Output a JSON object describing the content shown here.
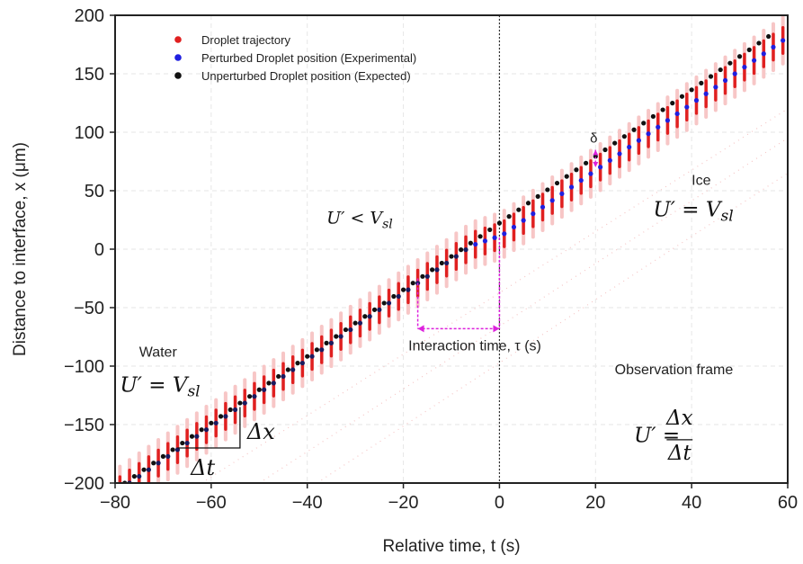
{
  "chart_data": {
    "type": "scatter",
    "xlabel": "Relative time, t (s)",
    "ylabel": "Distance to interface,  x (μm)",
    "xlim": [
      -80,
      60
    ],
    "ylim": [
      -200,
      200
    ],
    "xticks": [
      -80,
      -60,
      -40,
      -20,
      0,
      20,
      40,
      60
    ],
    "yticks": [
      -200,
      -150,
      -100,
      -50,
      0,
      50,
      100,
      150,
      200
    ],
    "x_tick_labels": [
      "−80",
      "−60",
      "−40",
      "−20",
      "0",
      "20",
      "40",
      "60"
    ],
    "y_tick_labels": [
      "−200",
      "−150",
      "−100",
      "−50",
      "0",
      "50",
      "100",
      "150",
      "200"
    ],
    "grid": true,
    "legend_position": "top-left",
    "series": [
      {
        "name": "Droplet trajectory",
        "color": "#e02020",
        "marker": "vertical streaks",
        "x_start": -79,
        "x_end": 59,
        "x_step": 2,
        "streak_length_um": 22
      },
      {
        "name": "Perturbed Droplet position (Experimental)",
        "color": "#1f1fe0",
        "x": [
          -77,
          -75,
          -73,
          -71,
          -69,
          -67,
          -65,
          -63,
          -61,
          -59,
          -57,
          -55,
          -53,
          -51,
          -49,
          -47,
          -45,
          -43,
          -41,
          -39,
          -37,
          -35,
          -33,
          -31,
          -29,
          -27,
          -25,
          -23,
          -21,
          -19,
          -17,
          -15,
          -13,
          -11,
          -9,
          -7,
          -5,
          -3,
          -1,
          1,
          3,
          5,
          7,
          9,
          11,
          13,
          15,
          17,
          19,
          21,
          23,
          25,
          27,
          29,
          31,
          33,
          35,
          37,
          39,
          41,
          43,
          45,
          47,
          49,
          51,
          53,
          55,
          57,
          59
        ],
        "y": [
          -200,
          -194.3,
          -188.6,
          -182.9,
          -177.2,
          -171.5,
          -165.8,
          -160.1,
          -154.4,
          -148.7,
          -143,
          -137.3,
          -131.6,
          -125.9,
          -120.2,
          -114.5,
          -108.8,
          -103.1,
          -97.4,
          -91.7,
          -86,
          -80.3,
          -74.6,
          -68.9,
          -63.2,
          -57.5,
          -51.8,
          -46.1,
          -40.4,
          -34.7,
          -29,
          -23.3,
          -17.6,
          -11.9,
          -6.2,
          -0.5,
          4.2,
          7,
          9.8,
          13.2,
          18.9,
          24.6,
          30.3,
          36,
          41.7,
          47.4,
          53.1,
          58.8,
          64.5,
          70.2,
          75.9,
          81.6,
          87.3,
          93,
          98.7,
          104.4,
          110.1,
          115.8,
          121.5,
          127.2,
          132.9,
          138.6,
          144.3,
          150,
          155.7,
          161.4,
          167.1,
          172.8,
          178.5
        ]
      },
      {
        "name": "Unperturbed Droplet position (Expected)",
        "color": "#111111",
        "x": [
          -78,
          -76,
          -74,
          -72,
          -70,
          -68,
          -66,
          -64,
          -62,
          -60,
          -58,
          -56,
          -54,
          -52,
          -50,
          -48,
          -46,
          -44,
          -42,
          -40,
          -38,
          -36,
          -34,
          -32,
          -30,
          -28,
          -26,
          -24,
          -22,
          -20,
          -18,
          -16,
          -14,
          -12,
          -10,
          -8,
          -6,
          -4,
          -2,
          0,
          2,
          4,
          6,
          8,
          10,
          12,
          14,
          16,
          18,
          20,
          22,
          24,
          26,
          28,
          30,
          32,
          34,
          36,
          38,
          40,
          42,
          44,
          46,
          48,
          50,
          52,
          54,
          56
        ],
        "y": [
          -200,
          -194.3,
          -188.6,
          -182.9,
          -177.2,
          -171.5,
          -165.8,
          -160.1,
          -154.4,
          -148.7,
          -143,
          -137.3,
          -131.6,
          -125.9,
          -120.2,
          -114.5,
          -108.8,
          -103.1,
          -97.4,
          -91.7,
          -86,
          -80.3,
          -74.6,
          -68.9,
          -63.2,
          -57.5,
          -51.8,
          -46.1,
          -40.4,
          -34.7,
          -29,
          -23.3,
          -17.6,
          -11.9,
          -6.2,
          -0.5,
          5.2,
          10.9,
          16.6,
          22.3,
          28,
          33.7,
          39.4,
          45.1,
          50.8,
          56.5,
          62.2,
          67.9,
          73.6,
          79.3,
          85,
          90.7,
          96.4,
          102.1,
          107.8,
          113.5,
          119.2,
          124.9,
          130.6,
          136.3,
          142,
          147.7,
          153.4,
          159.1,
          164.8,
          170.5,
          176.2,
          181.9
        ]
      }
    ],
    "reference_line": {
      "x": 0,
      "style": "dotted",
      "color": "#333333"
    },
    "interaction_bracket": {
      "x_from": -17,
      "x_to": 0,
      "y": -68,
      "label": "Interaction time, τ (s)",
      "color": "#dd22dd"
    },
    "delta_marker": {
      "x": 20,
      "y_from": 70,
      "y_to": 85,
      "label": "δ"
    },
    "slope_triangle": {
      "x_from": -67,
      "x_to": -54,
      "y_from": -170,
      "y_to": -135,
      "dx_label": "Δx",
      "dt_label": "Δt"
    },
    "annotations": [
      {
        "id": "water",
        "text": "Water",
        "x": -75,
        "y": -92
      },
      {
        "id": "water-eq",
        "text": "U′ = V",
        "sub": "sl",
        "x": -79,
        "y": -122
      },
      {
        "id": "mid-eq",
        "text": "U′ < V",
        "sub": "sl",
        "x": -36,
        "y": 22
      },
      {
        "id": "ice",
        "text": "Ice",
        "x": 40,
        "y": 55
      },
      {
        "id": "ice-eq",
        "text": "U′ = V",
        "sub": "sl",
        "x": 32,
        "y": 28
      },
      {
        "id": "obs",
        "text": "Observation frame",
        "x": 24,
        "y": -107
      },
      {
        "id": "obs-eq-lhs",
        "text": "U′ =",
        "x": 28,
        "y": -165
      },
      {
        "id": "obs-eq-num",
        "text": "Δx",
        "x": 37.5,
        "y": -150
      },
      {
        "id": "obs-eq-den",
        "text": "Δt",
        "x": 37.5,
        "y": -180
      }
    ]
  }
}
